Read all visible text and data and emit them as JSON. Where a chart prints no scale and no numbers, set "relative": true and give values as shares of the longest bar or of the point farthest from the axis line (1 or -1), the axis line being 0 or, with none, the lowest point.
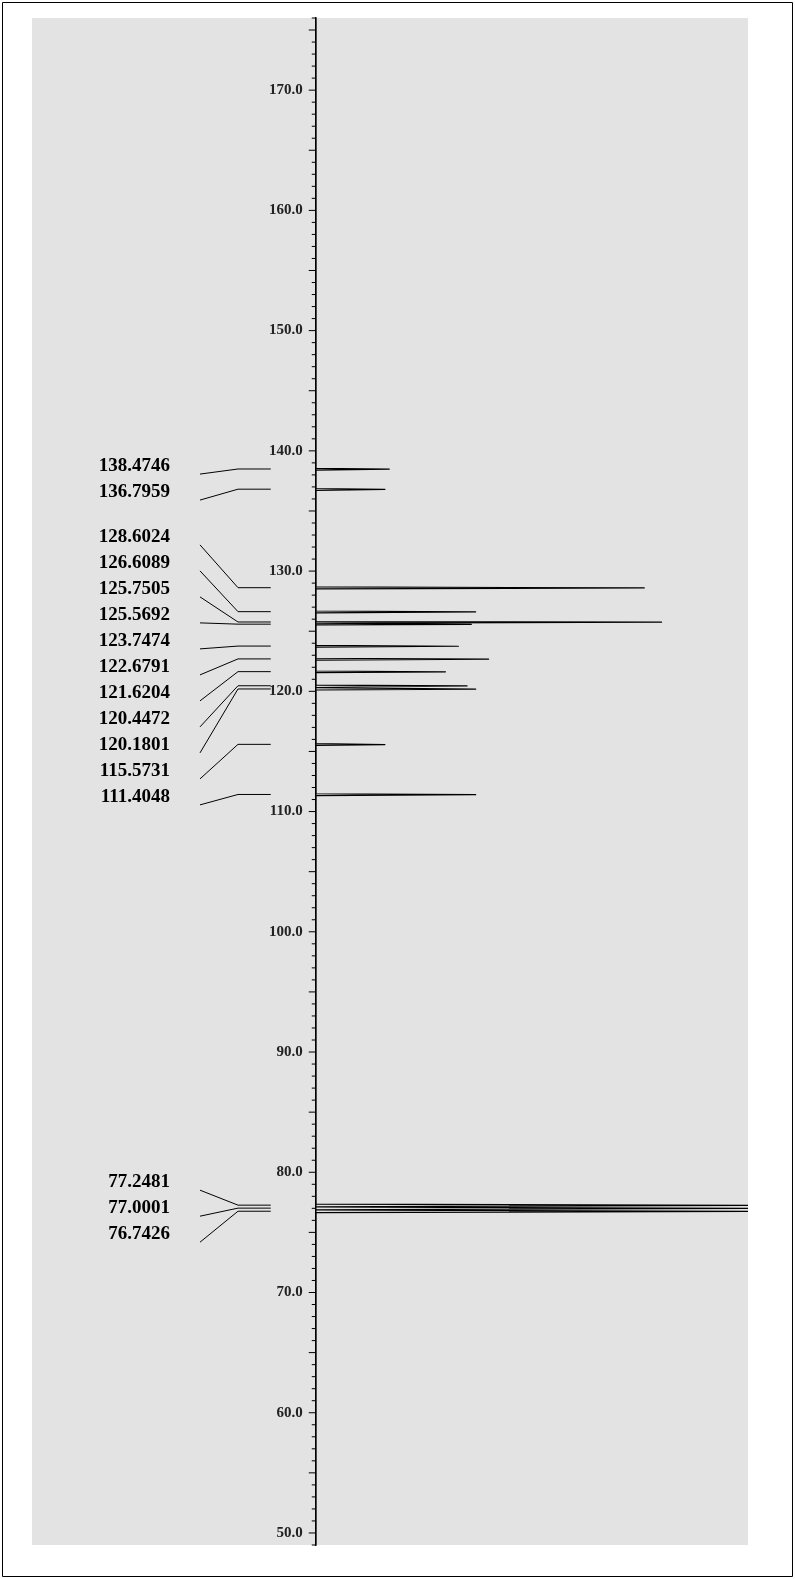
{
  "chart_data": {
    "type": "line",
    "orientation": "horizontal",
    "relative": true,
    "color": "#000000",
    "marker": "none",
    "grid": false,
    "legend": false,
    "x": [
      176,
      138.55,
      138.4746,
      138.4,
      136.87,
      136.7959,
      136.72,
      128.68,
      128.6024,
      128.52,
      126.68,
      126.6089,
      126.53,
      125.8,
      125.7505,
      125.66,
      125.5692,
      125.52,
      123.82,
      123.7474,
      123.67,
      122.75,
      122.6791,
      122.6,
      121.69,
      121.6204,
      121.55,
      120.52,
      120.4472,
      120.31,
      120.1801,
      120.11,
      115.65,
      115.5731,
      115.5,
      111.48,
      111.4048,
      111.33,
      77.35,
      77.2481,
      77.12,
      77.0001,
      76.87,
      76.7426,
      76.64,
      49
    ],
    "values": [
      0,
      0,
      0.17,
      0,
      0,
      0.16,
      0,
      0,
      0.76,
      0,
      0,
      0.37,
      0,
      0,
      0.8,
      0,
      0.36,
      0,
      0,
      0.33,
      0,
      0,
      0.4,
      0,
      0,
      0.3,
      0,
      0,
      0.35,
      0,
      0.37,
      0,
      0,
      0.16,
      0,
      0,
      0.37,
      0,
      0,
      1,
      0,
      1,
      0,
      1,
      0,
      0
    ],
    "ylim": [
      49,
      176
    ],
    "yticks": [
      {
        "value": 50,
        "label": "50.0"
      },
      {
        "value": 60,
        "label": "60.0"
      },
      {
        "value": 70,
        "label": "70.0"
      },
      {
        "value": 80,
        "label": "80.0"
      },
      {
        "value": 90,
        "label": "90.0"
      },
      {
        "value": 100,
        "label": "100.0"
      },
      {
        "value": 110,
        "label": "110.0"
      },
      {
        "value": 120,
        "label": "120.0"
      },
      {
        "value": 130,
        "label": "130.0"
      },
      {
        "value": 140,
        "label": "140.0"
      },
      {
        "value": 150,
        "label": "150.0"
      },
      {
        "value": 160,
        "label": "160.0"
      },
      {
        "value": 170,
        "label": "170.0"
      }
    ],
    "annotations": [
      "138.4746",
      "136.7959",
      "128.6024",
      "126.6089",
      "125.7505",
      "125.5692",
      "123.7474",
      "122.6791",
      "121.6204",
      "120.4472",
      "120.1801",
      "115.5731",
      "111.4048",
      "77.2481",
      "77.0001",
      "76.7426"
    ]
  }
}
